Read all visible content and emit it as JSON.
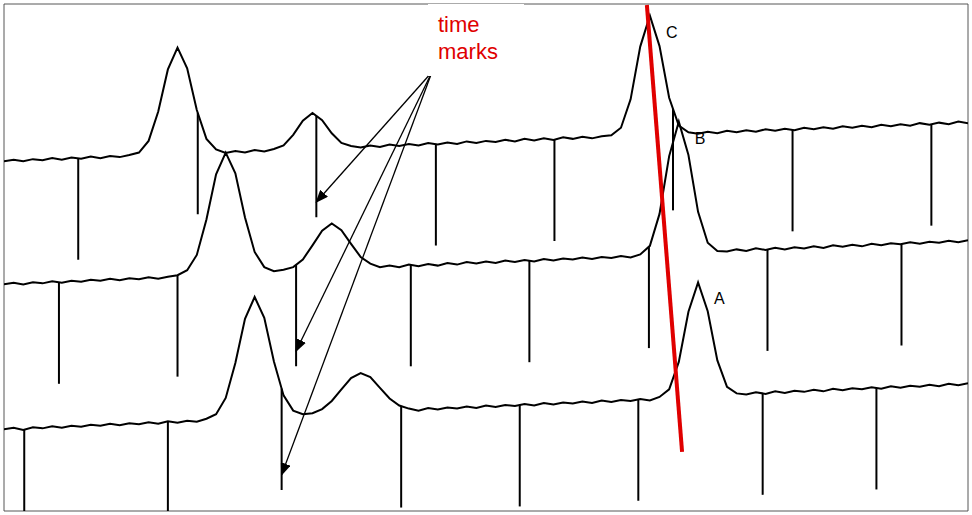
{
  "chart_data": {
    "type": "line",
    "x": [
      0,
      1,
      2,
      3,
      4,
      5,
      6,
      7,
      8,
      9,
      10,
      11,
      12,
      13,
      14,
      15,
      16,
      17,
      18,
      19,
      20,
      21,
      22,
      23,
      24,
      25,
      26,
      27,
      28,
      29,
      30,
      31,
      32,
      33,
      34,
      35,
      36,
      37,
      38,
      39,
      40,
      41,
      42,
      43,
      44,
      45,
      46,
      47,
      48,
      49,
      50,
      51,
      52,
      53,
      54,
      55,
      56,
      57,
      58,
      59,
      60,
      61,
      62,
      63,
      64,
      65,
      66,
      67,
      68,
      69,
      70,
      71,
      72,
      73,
      74,
      75,
      76,
      77,
      78,
      79,
      80,
      81,
      82,
      83,
      84,
      85,
      86,
      87,
      88,
      89,
      90,
      91,
      92,
      93,
      94,
      95,
      96,
      97,
      98,
      99,
      100
    ],
    "xlim": [
      0,
      100
    ],
    "xticks": [
      0,
      5,
      10,
      15,
      20,
      25,
      30,
      35,
      40,
      45,
      50,
      55,
      60,
      65,
      70,
      75,
      80,
      85,
      90,
      95,
      100
    ],
    "ylim": [
      0,
      100
    ],
    "yticks": [
      0,
      4,
      8,
      12,
      16,
      20,
      24,
      28,
      32,
      36,
      40,
      44,
      48,
      52,
      56,
      60,
      64,
      68,
      72,
      76,
      80,
      84,
      88,
      92,
      96,
      100
    ],
    "grid": true,
    "tick_labels": false,
    "series": [
      {
        "name": "C",
        "color": "#000000",
        "values": [
          69.0,
          69.3,
          69.0,
          69.4,
          69.2,
          69.6,
          69.3,
          69.7,
          69.5,
          69.9,
          69.6,
          70.0,
          69.8,
          70.2,
          70.7,
          73.0,
          78.8,
          87.1,
          91.4,
          87.3,
          79.1,
          73.4,
          71.3,
          70.6,
          71.0,
          70.7,
          71.2,
          70.9,
          71.4,
          72.1,
          74.2,
          77.0,
          78.5,
          77.1,
          74.5,
          72.6,
          72.0,
          71.7,
          72.1,
          71.8,
          72.3,
          72.0,
          72.4,
          72.1,
          72.6,
          72.3,
          72.7,
          72.4,
          72.9,
          72.6,
          73.0,
          72.8,
          73.2,
          72.9,
          73.4,
          73.1,
          73.5,
          73.2,
          73.7,
          73.4,
          73.8,
          73.5,
          73.9,
          74.1,
          75.6,
          81.2,
          91.6,
          97.7,
          91.7,
          81.5,
          76.0,
          74.7,
          74.4,
          74.8,
          74.5,
          75.0,
          74.7,
          75.1,
          74.8,
          75.3,
          75.0,
          75.4,
          75.1,
          75.6,
          75.3,
          75.7,
          75.4,
          75.9,
          75.6,
          76.0,
          75.7,
          76.2,
          75.9,
          76.3,
          76.0,
          76.5,
          76.2,
          76.6,
          76.3,
          76.8,
          76.5
        ],
        "time_marks": [
          7.7,
          20.1,
          32.4,
          44.8,
          57.1,
          69.4,
          81.8,
          96.2
        ]
      },
      {
        "name": "B",
        "color": "#000000",
        "values": [
          44.7,
          45.0,
          44.7,
          45.1,
          44.9,
          45.3,
          45.0,
          45.4,
          45.2,
          45.6,
          45.4,
          45.8,
          45.5,
          45.9,
          45.7,
          46.1,
          45.8,
          46.2,
          46.5,
          47.5,
          50.5,
          57.5,
          66.4,
          70.7,
          66.6,
          57.9,
          51.1,
          48.1,
          47.3,
          47.6,
          48.1,
          49.6,
          52.4,
          55.3,
          56.7,
          55.4,
          52.7,
          50.1,
          48.8,
          48.1,
          48.4,
          48.1,
          48.6,
          48.3,
          48.7,
          48.4,
          48.9,
          48.6,
          49.1,
          48.8,
          49.2,
          48.9,
          49.4,
          49.1,
          49.5,
          49.2,
          49.7,
          49.4,
          49.8,
          49.6,
          50.0,
          49.7,
          50.1,
          49.9,
          50.3,
          50.0,
          50.6,
          52.3,
          58.6,
          70.0,
          76.8,
          70.2,
          59.0,
          52.9,
          51.3,
          51.2,
          51.6,
          51.3,
          51.8,
          51.5,
          51.9,
          51.6,
          52.0,
          51.8,
          52.2,
          51.9,
          52.4,
          52.1,
          52.5,
          52.2,
          52.7,
          52.4,
          52.8,
          52.6,
          53.0,
          52.7,
          53.1,
          52.9,
          53.3,
          53.0,
          53.4
        ],
        "time_marks": [
          5.7,
          18.0,
          30.3,
          42.2,
          54.5,
          66.9,
          79.2,
          93.1
        ]
      },
      {
        "name": "A",
        "color": "#000000",
        "values": [
          16.1,
          16.4,
          16.0,
          16.5,
          16.3,
          16.7,
          16.4,
          16.8,
          16.6,
          17.0,
          16.8,
          17.2,
          16.9,
          17.3,
          17.1,
          17.5,
          17.2,
          17.7,
          17.4,
          17.8,
          17.6,
          18.2,
          19.1,
          22.3,
          29.2,
          37.9,
          42.2,
          38.1,
          29.5,
          22.8,
          19.8,
          19.1,
          19.3,
          20.1,
          21.7,
          24.0,
          26.2,
          27.2,
          26.4,
          24.3,
          22.2,
          20.8,
          20.2,
          19.8,
          20.3,
          20.0,
          20.4,
          20.2,
          20.6,
          20.3,
          20.8,
          20.5,
          20.9,
          20.7,
          21.1,
          20.8,
          21.3,
          21.0,
          21.4,
          21.2,
          21.6,
          21.3,
          21.8,
          21.5,
          21.9,
          21.7,
          22.1,
          21.8,
          22.5,
          24.0,
          29.4,
          39.3,
          45.1,
          39.4,
          29.7,
          24.5,
          23.2,
          23.0,
          23.4,
          23.1,
          23.6,
          23.3,
          23.7,
          23.5,
          23.9,
          23.6,
          24.1,
          23.8,
          24.2,
          24.0,
          24.4,
          24.1,
          24.6,
          24.3,
          24.7,
          24.5,
          24.9,
          24.6,
          25.1,
          24.8,
          25.2
        ],
        "time_marks": [
          2.1,
          17.0,
          28.8,
          41.2,
          53.5,
          65.8,
          78.7,
          90.5
        ]
      }
    ],
    "annotations": [
      "time marks"
    ]
  }
}
